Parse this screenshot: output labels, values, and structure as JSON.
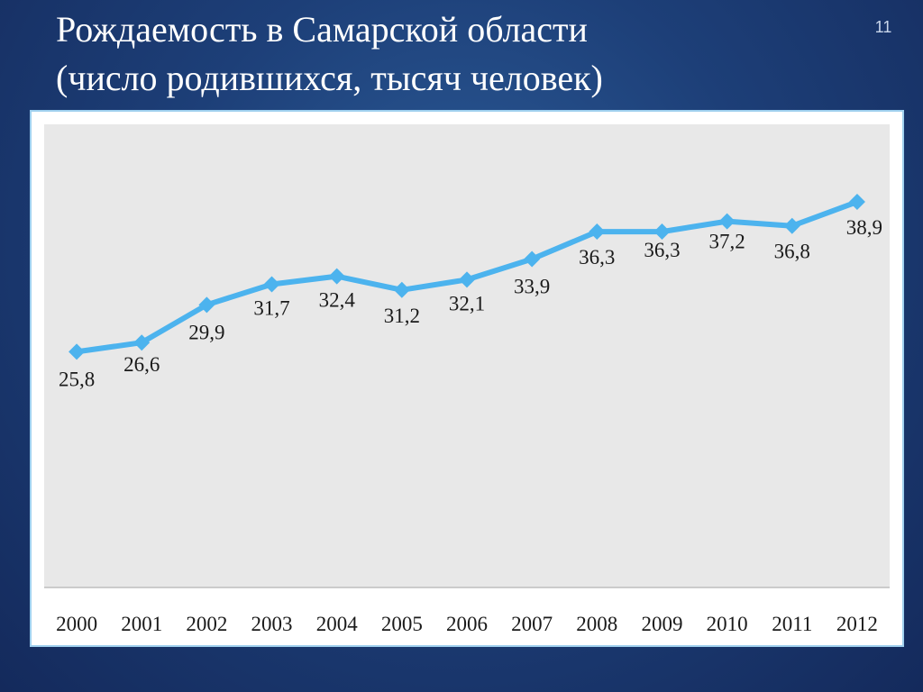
{
  "slide": {
    "title_line1": "Рождаемость в Самарской области",
    "title_line2": "(число родившихся, тысяч человек)",
    "page_number": "11"
  },
  "colors": {
    "background": "#1d3f78",
    "plot_area": "#e8e8e8",
    "series_line": "#4cb3ee",
    "text": "#1a1a1a"
  },
  "chart_data": {
    "type": "line",
    "title": "",
    "xlabel": "",
    "ylabel": "",
    "categories": [
      "2000",
      "2001",
      "2002",
      "2003",
      "2004",
      "2005",
      "2006",
      "2007",
      "2008",
      "2009",
      "2010",
      "2011",
      "2012"
    ],
    "series": [
      {
        "values": [
          25.8,
          26.6,
          29.9,
          31.7,
          32.4,
          31.2,
          32.1,
          33.9,
          36.3,
          36.3,
          37.2,
          36.8,
          38.9
        ],
        "labels": [
          "25,8",
          "26,6",
          "29,9",
          "31,7",
          "32,4",
          "31,2",
          "32,1",
          "33,9",
          "36,3",
          "36,3",
          "37,2",
          "36,8",
          "38,9"
        ],
        "marker": "diamond"
      }
    ],
    "ylim": [
      0,
      45
    ],
    "grid": false,
    "legend": "none"
  }
}
